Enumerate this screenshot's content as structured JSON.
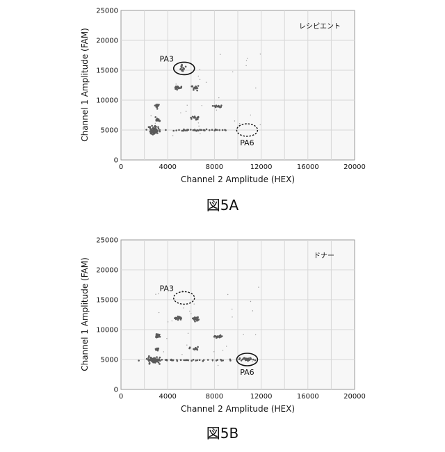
{
  "chart_data": [
    {
      "type": "scatter",
      "caption": "図5A",
      "corner_label": "レシピエント",
      "xlabel": "Channel 2 Amplitude (HEX)",
      "ylabel": "Channel 1 Amplitude (FAM)",
      "xlim": [
        0,
        20000
      ],
      "ylim": [
        0,
        25000
      ],
      "xticks": [
        "0",
        "4000",
        "8000",
        "12000",
        "16000",
        "20000"
      ],
      "yticks": [
        "0",
        "5000",
        "10000",
        "15000",
        "20000",
        "25000"
      ],
      "grid": true,
      "clusters": [
        {
          "x": 2800,
          "y": 4900,
          "count": 70,
          "sx": 250,
          "sy": 300
        },
        {
          "x": 3100,
          "y": 6700,
          "count": 14,
          "sx": 80,
          "sy": 150
        },
        {
          "x": 3100,
          "y": 9000,
          "count": 16,
          "sx": 90,
          "sy": 150
        },
        {
          "x": 4900,
          "y": 12100,
          "count": 18,
          "sx": 150,
          "sy": 170
        },
        {
          "x": 5200,
          "y": 15300,
          "count": 14,
          "sx": 150,
          "sy": 250
        },
        {
          "x": 6400,
          "y": 12100,
          "count": 16,
          "sx": 130,
          "sy": 200
        },
        {
          "x": 6300,
          "y": 7000,
          "count": 14,
          "sx": 200,
          "sy": 150
        },
        {
          "x": 8200,
          "y": 8900,
          "count": 14,
          "sx": 250,
          "sy": 120
        },
        {
          "x": 6000,
          "y": 5000,
          "count": 40,
          "sx": 2000,
          "sy": 60
        }
      ],
      "annotations": [
        {
          "label": "PA3",
          "x": 5400,
          "y": 15300,
          "style": "solid"
        },
        {
          "label": "PA6",
          "x": 10800,
          "y": 5000,
          "style": "dashed"
        }
      ]
    },
    {
      "type": "scatter",
      "caption": "図5B",
      "corner_label": "ドナー",
      "xlabel": "Channel 2 Amplitude (HEX)",
      "ylabel": "Channel 1 Amplitude (FAM)",
      "xlim": [
        0,
        20000
      ],
      "ylim": [
        0,
        25000
      ],
      "xticks": [
        "0",
        "4000",
        "8000",
        "12000",
        "16000",
        "20000"
      ],
      "yticks": [
        "0",
        "5000",
        "10000",
        "15000",
        "20000",
        "25000"
      ],
      "grid": true,
      "clusters": [
        {
          "x": 2800,
          "y": 4900,
          "count": 70,
          "sx": 250,
          "sy": 300
        },
        {
          "x": 3100,
          "y": 6700,
          "count": 14,
          "sx": 80,
          "sy": 150
        },
        {
          "x": 3100,
          "y": 9000,
          "count": 16,
          "sx": 90,
          "sy": 150
        },
        {
          "x": 4900,
          "y": 11900,
          "count": 18,
          "sx": 150,
          "sy": 170
        },
        {
          "x": 6400,
          "y": 11800,
          "count": 16,
          "sx": 130,
          "sy": 200
        },
        {
          "x": 6300,
          "y": 6800,
          "count": 14,
          "sx": 200,
          "sy": 150
        },
        {
          "x": 8300,
          "y": 8800,
          "count": 14,
          "sx": 250,
          "sy": 120
        },
        {
          "x": 10800,
          "y": 5000,
          "count": 30,
          "sx": 300,
          "sy": 140
        },
        {
          "x": 6000,
          "y": 4900,
          "count": 40,
          "sx": 2000,
          "sy": 60
        }
      ],
      "annotations": [
        {
          "label": "PA3",
          "x": 5400,
          "y": 15300,
          "style": "dashed"
        },
        {
          "label": "PA6",
          "x": 10800,
          "y": 5000,
          "style": "solid"
        }
      ]
    }
  ]
}
